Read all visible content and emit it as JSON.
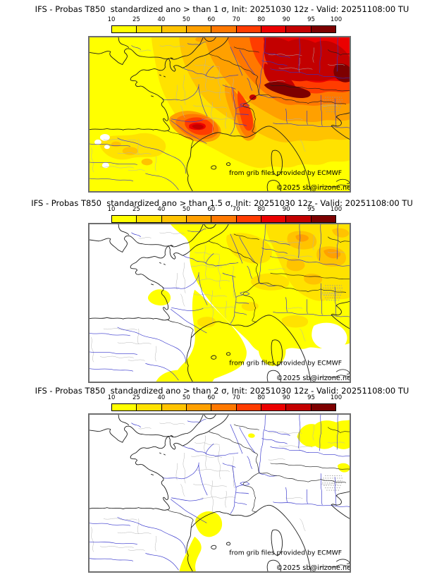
{
  "panels": [
    {
      "title": "IFS - Probas T850  standardized ano > than 1 σ, Init: 20251030 12z - Valid: 20251108:00 TU",
      "threshold_sigma": "1"
    },
    {
      "title": "IFS - Probas T850  standardized ano > than 1.5 σ, Init: 20251030 12z - Valid: 20251108:00 TU",
      "threshold_sigma": "1.5"
    },
    {
      "title": "IFS - Probas T850  standardized ano > than 2 σ, Init: 20251030 12z - Valid: 20251108:00 TU",
      "threshold_sigma": "2"
    }
  ],
  "colorbar": {
    "ticks": [
      "10",
      "25",
      "40",
      "50",
      "60",
      "70",
      "80",
      "90",
      "95",
      "100"
    ],
    "colors": [
      "#FFFF00",
      "#FFE200",
      "#FFC300",
      "#FFA000",
      "#FF7800",
      "#FF3C00",
      "#EB0000",
      "#C30000",
      "#7D0000"
    ]
  },
  "map": {
    "attribution": "from grib files provided by ECMWF",
    "copyright": "©2025 sb@irizone.net"
  },
  "chart_data": {
    "type": "heatmap",
    "product": "IFS - Probas T850 standardized anomaly probability maps",
    "model": "IFS",
    "variable": "T850",
    "init": "20251030 12z",
    "valid": "20251108:00 TU",
    "legend_levels_percent": [
      10,
      25,
      40,
      50,
      60,
      70,
      80,
      90,
      95,
      100
    ],
    "legend_colors": [
      "#FFFF00",
      "#FFE200",
      "#FFC300",
      "#FFA000",
      "#FF7800",
      "#FF3C00",
      "#EB0000",
      "#C30000",
      "#7D0000"
    ],
    "panels": [
      {
        "threshold": "> 1 σ",
        "field_summary": "Whole domain ≥10%; probabilities rise toward NE; 95-100% core over the Alps / S Germany; secondary 80-95% maximum over SW France (Toulouse area); lowest values (10-25%) over Atlantic, Iberia and W England"
      },
      {
        "threshold": "> 1.5 σ",
        "field_summary": "White (<10%) over Atlantic, W France and Iberia; 10-40% band over N/C France; 40-60% maximum over S Germany / NE corner; small 25-50% patch near Toulouse and around Corsica"
      },
      {
        "threshold": "> 2 σ",
        "field_summary": "Mostly below 10% (white); isolated 10-25% patches over SE Germany (NE corner), near the eastern Pyrenees / Languedoc and along the Catalan coast"
      }
    ]
  }
}
